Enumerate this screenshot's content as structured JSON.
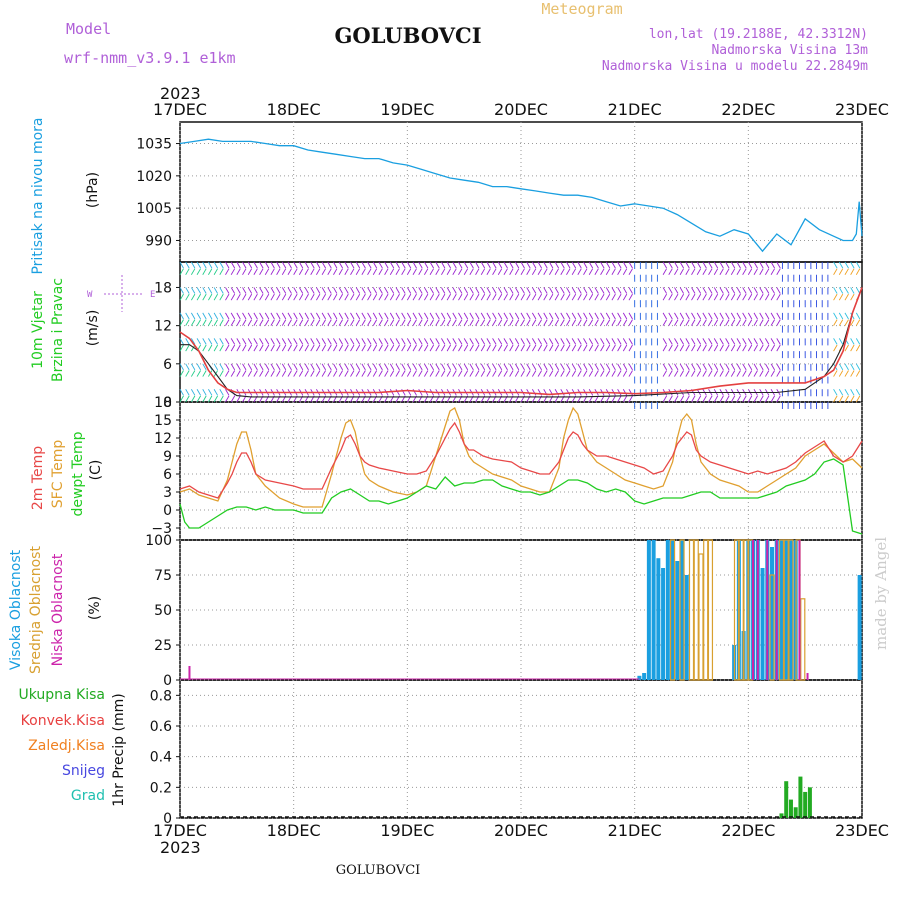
{
  "header": {
    "model_label": "Model",
    "model_name": "wrf-nmm_v3.9.1 e1km",
    "station": "GOLUBOVCI",
    "product": "Meteogram",
    "lonlat": "lon,lat (19.2188E, 42.3312N)",
    "elevation": "Nadmorska Visina 13m",
    "model_elevation": "Nadmorska Visina u modelu 22.2849m",
    "year_top": "2023",
    "year_bottom": "2023",
    "footer_station": "GOLUBOVCI",
    "credit": "made by Angel"
  },
  "colors": {
    "pressure": "#1a9fe0",
    "wind_speed": "#e44040",
    "wind_gust": "#222222",
    "barb": "#9a22d0",
    "temp2m": "#e84848",
    "sfc_temp": "#e0a030",
    "dewpt": "#22cc22",
    "high_cloud": "#1a9fe0",
    "mid_cloud": "#d8a030",
    "low_cloud": "#cc22aa",
    "total_precip": "#22aa22",
    "conv_precip": "#e84040",
    "frz_precip": "#f08020",
    "snow": "#4848e0",
    "hail": "#20c0b0",
    "label_purple": "#b060d8",
    "label_gold": "#e8c070"
  },
  "chart_data": [
    {
      "type": "line",
      "panel": "pressure",
      "ylabel_colored": "Pritisak na nivou mora",
      "ylabel_unit": "(hPa)",
      "x_ticks": [
        "17DEC",
        "18DEC",
        "19DEC",
        "20DEC",
        "21DEC",
        "22DEC",
        "23DEC"
      ],
      "y_ticks": [
        "1035",
        "1020",
        "1005",
        "990"
      ],
      "ylim": [
        980,
        1045
      ],
      "xlim": [
        0,
        144
      ],
      "grid": true,
      "series": [
        {
          "key": "slp",
          "x": [
            0,
            3,
            6,
            9,
            12,
            15,
            18,
            21,
            24,
            27,
            30,
            33,
            36,
            39,
            42,
            45,
            48,
            51,
            54,
            57,
            60,
            63,
            66,
            69,
            72,
            75,
            78,
            81,
            84,
            87,
            90,
            93,
            96,
            99,
            102,
            105,
            108,
            111,
            114,
            117,
            120,
            123,
            126,
            129,
            132,
            135,
            138,
            140,
            141,
            142,
            142.8,
            143.4,
            144
          ],
          "values": [
            1035,
            1036,
            1037,
            1036,
            1036,
            1036,
            1035,
            1034,
            1034,
            1032,
            1031,
            1030,
            1029,
            1028,
            1028,
            1026,
            1025,
            1023,
            1021,
            1019,
            1018,
            1017,
            1015,
            1015,
            1014,
            1013,
            1012,
            1011,
            1011,
            1010,
            1008,
            1006,
            1007,
            1006,
            1005,
            1002,
            998,
            994,
            992,
            995,
            993,
            985,
            993,
            988,
            1000,
            995,
            992,
            990,
            990,
            990,
            993,
            1008,
            992
          ]
        }
      ]
    },
    {
      "type": "line",
      "panel": "wind",
      "ylabel_colored_1": "10m Vjetar",
      "ylabel_colored_2": "Brzina i Pravac",
      "ylabel_unit": "(m/s)",
      "compass": "N / S / W / E",
      "y_ticks": [
        "18",
        "12",
        "6",
        "0"
      ],
      "ylim": [
        0,
        22
      ],
      "xlim": [
        0,
        144
      ],
      "barb_levels_ms": [
        0,
        2,
        4,
        6,
        8,
        10,
        12,
        14,
        16,
        18,
        20,
        22
      ],
      "series": [
        {
          "key": "wind_speed",
          "x": [
            0,
            2,
            4,
            6,
            8,
            10,
            12,
            15,
            18,
            21,
            24,
            30,
            36,
            42,
            48,
            54,
            60,
            66,
            72,
            78,
            84,
            90,
            96,
            102,
            108,
            114,
            120,
            126,
            132,
            136,
            138,
            140,
            142,
            144
          ],
          "values": [
            11,
            10,
            8,
            5,
            3,
            2,
            1.5,
            1.5,
            1.5,
            1.5,
            1.5,
            1.5,
            1.5,
            1.5,
            1.8,
            1.5,
            1.5,
            1.5,
            1.5,
            1.2,
            1.5,
            1.5,
            1.3,
            1.5,
            1.8,
            2.5,
            3,
            3,
            3,
            4,
            5,
            8,
            14,
            18
          ]
        },
        {
          "key": "wind_gust",
          "x": [
            0,
            2,
            4,
            6,
            8,
            10,
            12,
            15,
            24,
            36,
            48,
            60,
            72,
            84,
            96,
            108,
            114,
            120,
            126,
            132,
            136,
            138,
            140,
            142,
            144
          ],
          "values": [
            9,
            9,
            8,
            6,
            4,
            2,
            1,
            0.8,
            0.8,
            0.8,
            0.8,
            0.8,
            0.8,
            0.8,
            1,
            1.5,
            1.5,
            1.5,
            1.5,
            2,
            4,
            6,
            9,
            14,
            18
          ]
        }
      ]
    },
    {
      "type": "line",
      "panel": "temperature",
      "ylabel_colored_1": "2m Temp",
      "ylabel_colored_2": "SFC Temp",
      "ylabel_colored_3": "dewpt Temp",
      "ylabel_unit": "(C)",
      "y_ticks": [
        "18",
        "15",
        "12",
        "9",
        "6",
        "3",
        "0",
        "−3"
      ],
      "ylim": [
        -5,
        18
      ],
      "xlim": [
        0,
        144
      ],
      "series": [
        {
          "key": "temp2m",
          "x": [
            0,
            2,
            4,
            6,
            8,
            10,
            11,
            12,
            13,
            14,
            15,
            16,
            18,
            21,
            24,
            26,
            28,
            30,
            32,
            34,
            35,
            36,
            37,
            38,
            39,
            40,
            42,
            45,
            48,
            50,
            52,
            54,
            56,
            57,
            58,
            59,
            60,
            61,
            62,
            64,
            66,
            70,
            72,
            74,
            76,
            78,
            80,
            81,
            82,
            83,
            84,
            85,
            86,
            88,
            90,
            92,
            94,
            96,
            98,
            100,
            102,
            104,
            105,
            106,
            107,
            108,
            109,
            110,
            112,
            114,
            116,
            118,
            120,
            122,
            124,
            126,
            128,
            130,
            132,
            134,
            136,
            138,
            140,
            142,
            144
          ],
          "values": [
            3.5,
            4,
            3,
            2.5,
            2,
            4.5,
            6,
            8,
            9.5,
            9.5,
            8,
            6,
            5,
            4.5,
            4,
            3.5,
            3.5,
            3.5,
            7,
            10,
            12,
            12.5,
            11,
            9,
            8,
            7.5,
            7,
            6.5,
            6,
            6,
            6.5,
            9,
            12,
            13.5,
            14.5,
            13,
            11,
            10,
            10,
            9,
            8.5,
            8,
            7,
            6.5,
            6,
            6,
            8,
            10,
            12,
            13,
            12.5,
            11,
            10,
            9,
            9,
            8.5,
            8,
            7.5,
            7,
            6,
            6.5,
            9,
            11,
            12,
            13,
            12.5,
            10,
            9,
            8,
            7.5,
            7,
            6.5,
            6,
            6.5,
            6,
            6.5,
            7,
            8,
            9.5,
            10.5,
            11.5,
            9,
            8,
            9,
            11.5
          ]
        },
        {
          "key": "sfc_temp",
          "x": [
            0,
            2,
            4,
            6,
            8,
            10,
            11,
            12,
            13,
            14,
            15,
            16,
            18,
            21,
            24,
            26,
            28,
            30,
            32,
            34,
            35,
            36,
            37,
            38,
            39,
            40,
            42,
            45,
            48,
            50,
            52,
            54,
            56,
            57,
            58,
            59,
            60,
            61,
            62,
            64,
            66,
            70,
            72,
            74,
            76,
            78,
            80,
            81,
            82,
            83,
            84,
            85,
            86,
            88,
            90,
            92,
            94,
            96,
            98,
            100,
            102,
            104,
            105,
            106,
            107,
            108,
            109,
            110,
            112,
            114,
            116,
            118,
            120,
            122,
            124,
            126,
            128,
            130,
            132,
            134,
            136,
            138,
            140,
            142,
            144
          ],
          "values": [
            3,
            3.5,
            2.5,
            2,
            1.5,
            5,
            8,
            11,
            13,
            13,
            10,
            6,
            4,
            2,
            1,
            0.5,
            0.5,
            0.5,
            6,
            12,
            14.5,
            15,
            13,
            9,
            6,
            5,
            4,
            3,
            2.5,
            3,
            4,
            9,
            14,
            16.5,
            17,
            15,
            11,
            9,
            8,
            7,
            6,
            5,
            4,
            3.5,
            3,
            3,
            7,
            12,
            15,
            17,
            16,
            13,
            10,
            8,
            7,
            6,
            5,
            4.5,
            4,
            3.5,
            4,
            8,
            12,
            15,
            16,
            15,
            11,
            8,
            6,
            5,
            4.5,
            4,
            3,
            3,
            4,
            5,
            6,
            7,
            9,
            10,
            11,
            9.5,
            8,
            8.5,
            7
          ]
        },
        {
          "key": "dewpt",
          "x": [
            0,
            1,
            2,
            4,
            6,
            8,
            10,
            12,
            14,
            16,
            18,
            20,
            22,
            24,
            26,
            28,
            30,
            32,
            34,
            36,
            38,
            40,
            42,
            44,
            46,
            48,
            50,
            52,
            54,
            56,
            58,
            60,
            62,
            64,
            66,
            68,
            70,
            72,
            74,
            76,
            78,
            80,
            82,
            84,
            86,
            88,
            90,
            92,
            94,
            96,
            98,
            100,
            102,
            104,
            106,
            108,
            110,
            112,
            114,
            116,
            118,
            120,
            122,
            124,
            126,
            128,
            130,
            132,
            134,
            136,
            138,
            140,
            142,
            144
          ],
          "values": [
            1,
            -2,
            -3,
            -3,
            -2,
            -1,
            0,
            0.5,
            0.5,
            0,
            0.5,
            0,
            0,
            0,
            -0.5,
            -0.5,
            -0.5,
            2,
            3,
            3.5,
            2.5,
            1.5,
            1.5,
            1,
            1.5,
            2,
            3,
            4,
            3.5,
            5.5,
            4,
            4.5,
            4.5,
            5,
            5,
            4,
            3.5,
            3,
            3,
            2.5,
            3,
            4,
            5,
            5,
            4.5,
            3.5,
            3,
            3.5,
            3,
            1.5,
            1,
            1.5,
            2,
            2,
            2,
            2.5,
            3,
            3,
            2,
            2,
            2,
            2,
            2,
            2.5,
            3,
            4,
            4.5,
            5,
            6,
            8,
            8.5,
            7.5,
            -3.5,
            -4
          ]
        }
      ]
    },
    {
      "type": "bar",
      "panel": "clouds",
      "ylabel_colored_1": "Visoka Oblacnost",
      "ylabel_colored_2": "Srednja Oblacnost",
      "ylabel_colored_3": "Niska Oblacnost",
      "ylabel_unit": "(%)",
      "y_ticks": [
        "100",
        "75",
        "50",
        "25",
        "0"
      ],
      "ylim": [
        0,
        100
      ],
      "xlim": [
        0,
        144
      ],
      "series": [
        {
          "key": "high",
          "x": [
            97,
            98,
            99,
            100,
            101,
            102,
            103,
            104,
            105,
            106,
            107,
            117,
            118,
            119,
            120,
            121,
            122,
            123,
            124,
            125,
            126,
            127,
            128,
            129,
            130,
            143.5
          ],
          "values": [
            3,
            5,
            100,
            100,
            87,
            80,
            100,
            100,
            85,
            100,
            75,
            25,
            100,
            35,
            100,
            100,
            100,
            80,
            100,
            95,
            100,
            100,
            100,
            100,
            100,
            75
          ]
        },
        {
          "key": "mid",
          "x": [
            104,
            106,
            108,
            109,
            110,
            111,
            112,
            117.5,
            118.5,
            119.5,
            120.5,
            125,
            127,
            128,
            129,
            130.5,
            131.5
          ],
          "values": [
            100,
            100,
            100,
            100,
            90,
            100,
            100,
            100,
            100,
            100,
            100,
            75,
            100,
            100,
            100,
            100,
            58
          ]
        },
        {
          "key": "low",
          "x": [
            2,
            121,
            122,
            124,
            126,
            130.8,
            132.5
          ],
          "values": [
            10,
            100,
            100,
            100,
            100,
            100,
            5
          ]
        }
      ]
    },
    {
      "type": "bar",
      "panel": "precip",
      "legend": [
        "Ukupna Kisa",
        "Konvek.Kisa",
        "Zaledj.Kisa",
        "Snijeg",
        "Grad"
      ],
      "ylabel_unit": "1hr Precip (mm)",
      "y_ticks": [
        "0.8",
        "0.6",
        "0.4",
        "0.2",
        "0"
      ],
      "ylim": [
        0,
        0.9
      ],
      "xlim": [
        0,
        144
      ],
      "series": [
        {
          "key": "total",
          "x": [
            127,
            128,
            129,
            130,
            131,
            132,
            133
          ],
          "values": [
            0.03,
            0.24,
            0.12,
            0.07,
            0.27,
            0.17,
            0.2
          ]
        }
      ]
    }
  ]
}
